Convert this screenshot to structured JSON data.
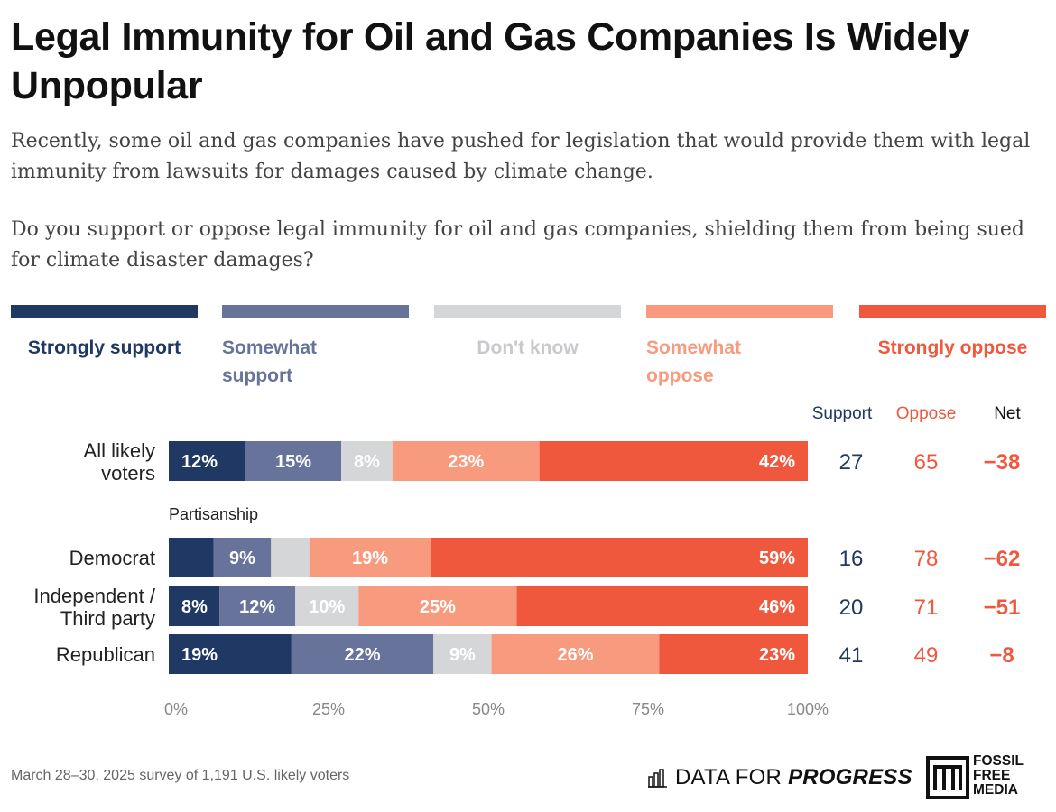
{
  "title": "Legal Immunity for Oil and Gas Companies Is Widely Unpopular",
  "subtitle": "Recently, some oil and gas companies have pushed for legislation that would provide them with legal immunity from lawsuits for damages caused by climate change.",
  "question": "Do you support or oppose legal immunity for oil and gas companies, shielding them from being sued for climate disaster damages?",
  "legend": [
    {
      "label": "Strongly support",
      "color": "#1f3864"
    },
    {
      "label": "Somewhat support",
      "color": "#67739a"
    },
    {
      "label": "Don't know",
      "color": "#d5d6d8"
    },
    {
      "label": "Somewhat oppose",
      "color": "#f89a7e"
    },
    {
      "label": "Strongly oppose",
      "color": "#f0583d"
    }
  ],
  "column_headers": {
    "support": "Support",
    "oppose": "Oppose",
    "net": "Net"
  },
  "group_label": "Partisanship",
  "chart_data": {
    "type": "bar",
    "orientation": "horizontal",
    "stacked": true,
    "xlim": [
      0,
      100
    ],
    "x_ticks": [
      "0%",
      "25%",
      "50%",
      "75%",
      "100%"
    ],
    "categories": [
      "All likely voters",
      "Democrat",
      "Independent / Third party",
      "Republican"
    ],
    "series": [
      {
        "name": "Strongly support",
        "values": [
          12,
          7,
          8,
          19
        ],
        "labels": [
          "12%",
          "",
          "8%",
          "19%"
        ]
      },
      {
        "name": "Somewhat support",
        "values": [
          15,
          9,
          12,
          22
        ],
        "labels": [
          "15%",
          "9%",
          "12%",
          "22%"
        ]
      },
      {
        "name": "Don't know",
        "values": [
          8,
          6,
          10,
          9
        ],
        "labels": [
          "8%",
          "",
          "10%",
          "9%"
        ]
      },
      {
        "name": "Somewhat oppose",
        "values": [
          23,
          19,
          25,
          26
        ],
        "labels": [
          "23%",
          "19%",
          "25%",
          "26%"
        ]
      },
      {
        "name": "Strongly oppose",
        "values": [
          42,
          59,
          46,
          23
        ],
        "labels": [
          "42%",
          "59%",
          "46%",
          "23%"
        ]
      }
    ],
    "support": [
      27,
      16,
      20,
      41
    ],
    "oppose": [
      65,
      78,
      71,
      49
    ],
    "net": [
      "−38",
      "−62",
      "−51",
      "−8"
    ]
  },
  "footer": {
    "note": "March 28–30, 2025 survey of 1,191 U.S. likely voters",
    "dfp_logo_light": "DATA FOR",
    "dfp_logo_bold": "PROGRESS",
    "ffm_logo": [
      "FOSSIL",
      "FREE",
      "MEDIA"
    ]
  },
  "colors": {
    "support_text": "#1f3864",
    "oppose_text": "#f0583d",
    "axis_text": "#888888"
  }
}
